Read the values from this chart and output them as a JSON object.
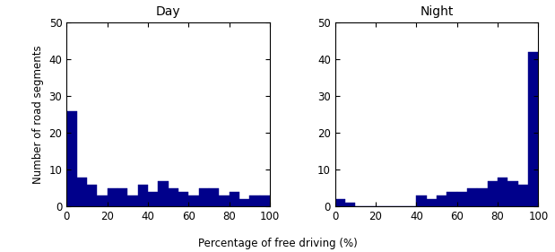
{
  "day_values": [
    26,
    8,
    6,
    3,
    5,
    5,
    3,
    6,
    4,
    7,
    5,
    4,
    3,
    5,
    5,
    3,
    4,
    2,
    3,
    3
  ],
  "night_values": [
    2,
    1,
    0,
    0,
    0,
    0,
    0,
    0,
    3,
    2,
    3,
    4,
    4,
    5,
    5,
    7,
    8,
    7,
    6,
    42
  ],
  "bin_edges": [
    0,
    5,
    10,
    15,
    20,
    25,
    30,
    35,
    40,
    45,
    50,
    55,
    60,
    65,
    70,
    75,
    80,
    85,
    90,
    95,
    100
  ],
  "bar_color": "#00008B",
  "bar_edge_color": "#00008B",
  "title_day": "Day",
  "title_night": "Night",
  "xlabel": "Percentage of free driving (%)",
  "ylabel": "Number of road segments",
  "ylim": [
    0,
    50
  ],
  "xlim": [
    0,
    100
  ],
  "xticks": [
    0,
    20,
    40,
    60,
    80,
    100
  ],
  "yticks": [
    0,
    10,
    20,
    30,
    40,
    50
  ],
  "title_fontsize": 10,
  "label_fontsize": 8.5,
  "tick_fontsize": 8.5
}
